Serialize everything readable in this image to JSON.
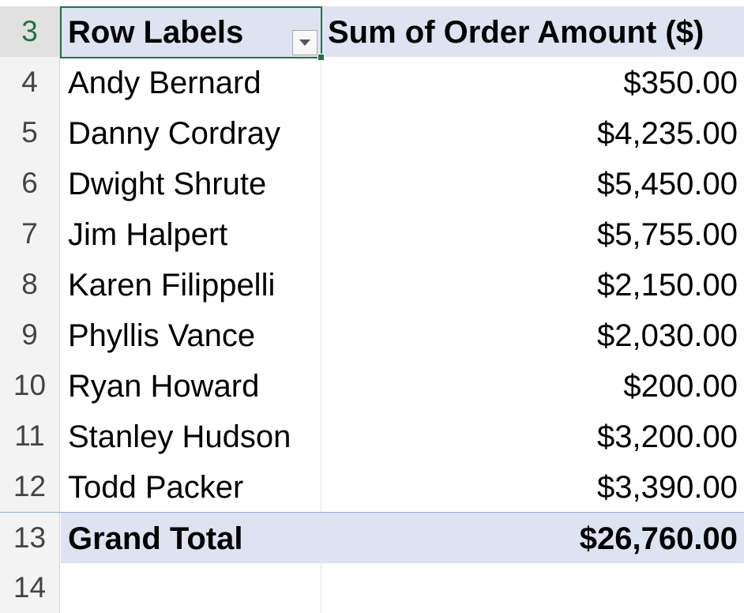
{
  "pivot": {
    "header": {
      "row_number": "3",
      "row_labels": "Row Labels",
      "value_header": "Sum of Order Amount ($)"
    },
    "rows": [
      {
        "row_number": "4",
        "name": "Andy Bernard",
        "amount": "$350.00"
      },
      {
        "row_number": "5",
        "name": "Danny Cordray",
        "amount": "$4,235.00"
      },
      {
        "row_number": "6",
        "name": "Dwight Shrute",
        "amount": "$5,450.00"
      },
      {
        "row_number": "7",
        "name": "Jim Halpert",
        "amount": "$5,755.00"
      },
      {
        "row_number": "8",
        "name": "Karen Filippelli",
        "amount": "$2,150.00"
      },
      {
        "row_number": "9",
        "name": "Phyllis Vance",
        "amount": "$2,030.00"
      },
      {
        "row_number": "10",
        "name": "Ryan Howard",
        "amount": "$200.00"
      },
      {
        "row_number": "11",
        "name": "Stanley Hudson",
        "amount": "$3,200.00"
      },
      {
        "row_number": "12",
        "name": "Todd Packer",
        "amount": "$3,390.00"
      }
    ],
    "total": {
      "row_number": "13",
      "label": "Grand Total",
      "amount": "$26,760.00"
    },
    "empty_row_number": "14"
  },
  "colors": {
    "header_fill": "#dde3f0",
    "selection_border": "#217346"
  },
  "icons": {
    "filter": "dropdown-filter-icon"
  }
}
